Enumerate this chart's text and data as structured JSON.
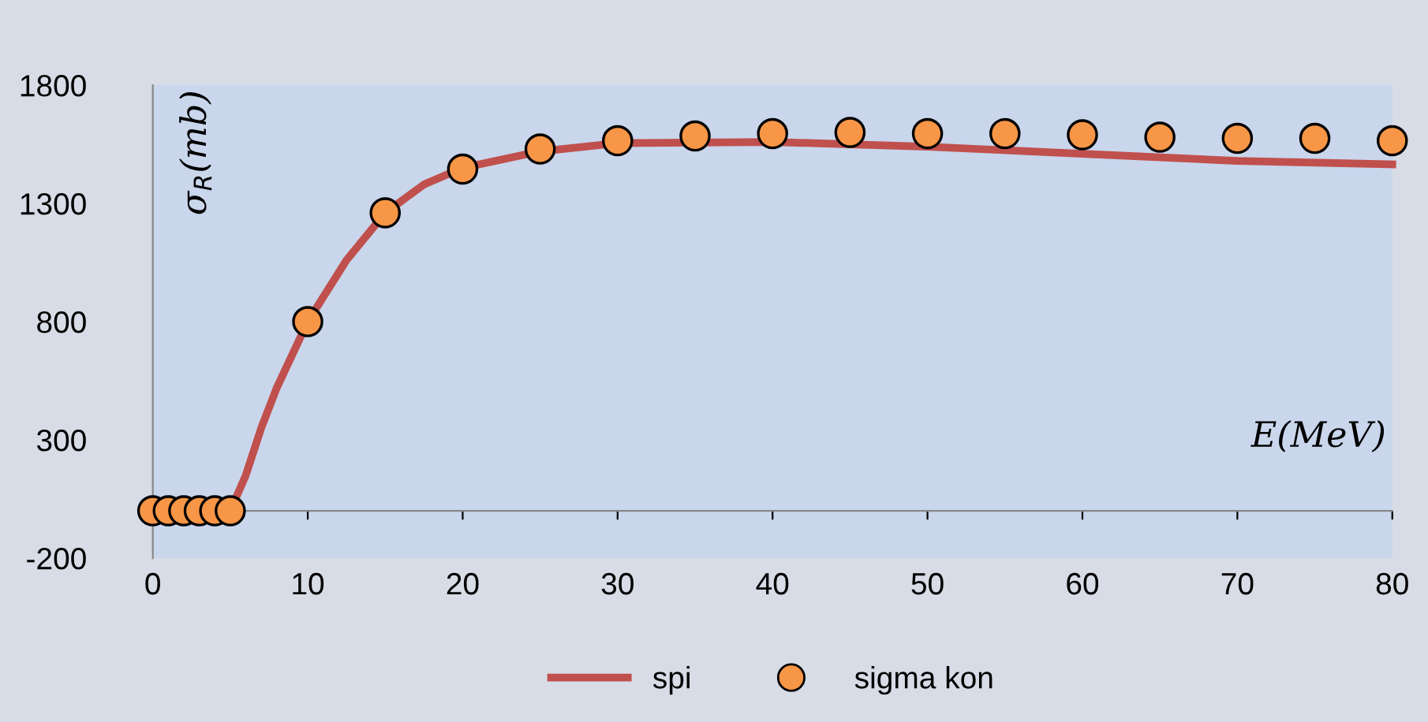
{
  "chart_data": {
    "type": "line",
    "xlabel": "E(MeV)",
    "ylabel": "σ$_{R}$(mb)",
    "xlim": [
      0,
      80
    ],
    "xticks": [
      0,
      10,
      20,
      30,
      40,
      50,
      60,
      70,
      80
    ],
    "ylim": [
      -200,
      1800
    ],
    "yticks": [
      -200,
      300,
      800,
      1300,
      1800
    ],
    "grid": false,
    "legend": "bottom",
    "series": [
      {
        "name": "spi",
        "color": "#c0504d",
        "marker": "none",
        "x": [
          5,
          6,
          7,
          8,
          10,
          12.5,
          15,
          17.5,
          20,
          25,
          30,
          40,
          45,
          50,
          60,
          70,
          80
        ],
        "values": [
          0,
          150,
          350,
          520,
          800,
          1060,
          1260,
          1380,
          1450,
          1520,
          1555,
          1560,
          1550,
          1540,
          1510,
          1480,
          1465
        ]
      },
      {
        "name": "sigma kon",
        "type": "scatter",
        "color": "#f79646",
        "marker": "circle",
        "x": [
          0,
          1,
          2,
          3,
          4,
          5,
          10,
          15,
          20,
          25,
          30,
          35,
          40,
          45,
          50,
          55,
          60,
          65,
          70,
          75,
          80
        ],
        "values": [
          0,
          0,
          0,
          0,
          0,
          0,
          800,
          1260,
          1445,
          1530,
          1565,
          1585,
          1595,
          1600,
          1595,
          1595,
          1590,
          1580,
          1575,
          1575,
          1565
        ]
      }
    ]
  }
}
